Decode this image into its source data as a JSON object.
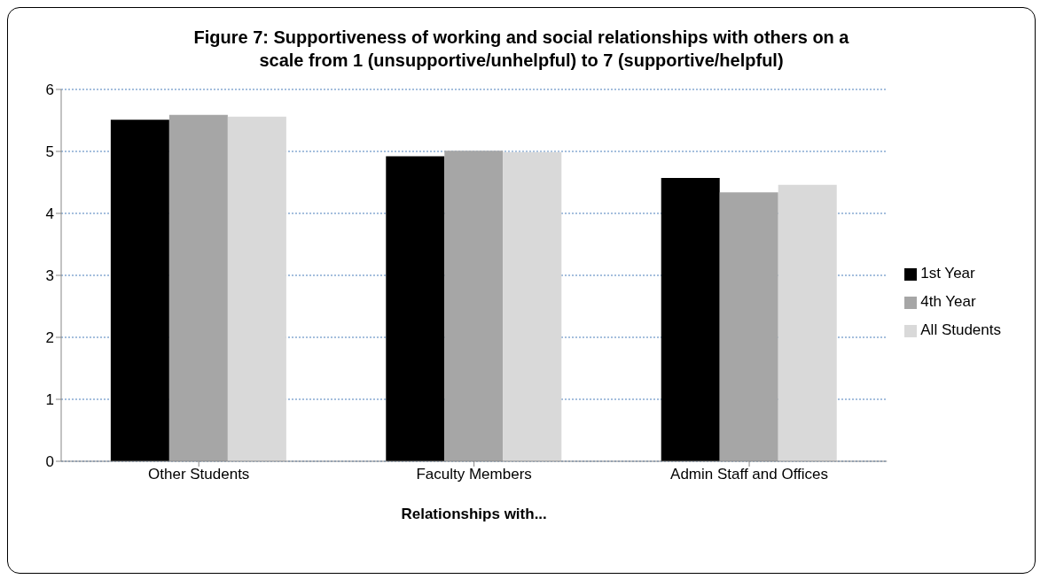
{
  "chart_data": {
    "type": "bar",
    "title": "Figure 7:  Supportiveness of working and social relationships with others on a scale from 1 (unsupportive/unhelpful) to 7 (supportive/helpful)",
    "xlabel": "Relationships with...",
    "categories": [
      "Other Students",
      "Faculty Members",
      "Admin Staff  and Offices"
    ],
    "series": [
      {
        "name": "1st Year",
        "color": "#000000",
        "values": [
          5.51,
          4.92,
          4.57
        ]
      },
      {
        "name": "4th Year",
        "color": "#a6a6a6",
        "values": [
          5.59,
          5.01,
          4.34
        ]
      },
      {
        "name": "All Students",
        "color": "#d9d9d9",
        "values": [
          5.56,
          4.99,
          4.46
        ]
      }
    ],
    "ylim": [
      0,
      6
    ],
    "yticks": [
      0,
      1,
      2,
      3,
      4,
      5,
      6
    ],
    "grid": "y",
    "legend": "right"
  }
}
